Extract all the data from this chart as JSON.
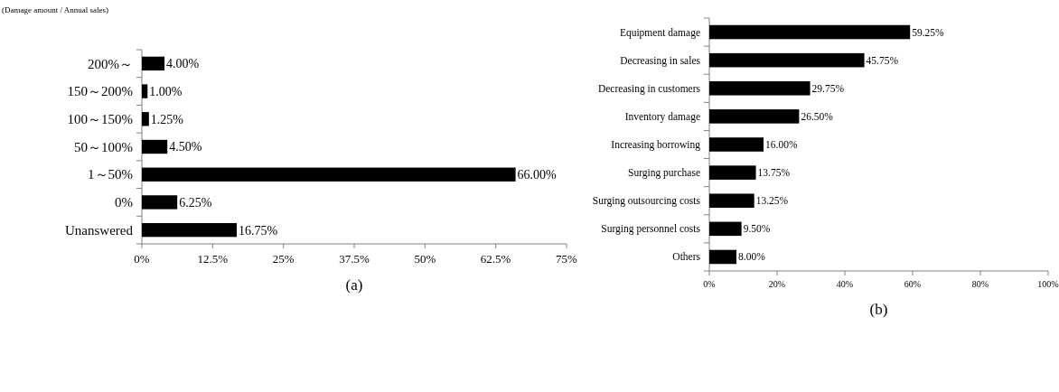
{
  "chart_data": [
    {
      "type": "bar",
      "orientation": "horizontal",
      "xlabel": "(a)",
      "annotations": [
        "(Damage amount / Annual sales)"
      ],
      "categories": [
        "200%～",
        "150～200%",
        "100～150%",
        "50～100%",
        "1～50%",
        "0%",
        "Unanswered"
      ],
      "values": [
        4.0,
        1.0,
        1.25,
        4.5,
        66.0,
        6.25,
        16.75
      ],
      "value_labels": [
        "4.00%",
        "1.00%",
        "1.25%",
        "4.50%",
        "66.00%",
        "6.25%",
        "16.75%"
      ],
      "color": "#000000",
      "xlim": [
        0,
        75
      ],
      "xticks": [
        {
          "value": 0,
          "label": "0%"
        },
        {
          "value": 12.5,
          "label": "12.5%"
        },
        {
          "value": 25,
          "label": "25%"
        },
        {
          "value": 37.5,
          "label": "37.5%"
        },
        {
          "value": 50,
          "label": "50%"
        },
        {
          "value": 62.5,
          "label": "62.5%"
        },
        {
          "value": 75,
          "label": "75%"
        }
      ],
      "grid": false
    },
    {
      "type": "bar",
      "orientation": "horizontal",
      "xlabel": "(b)",
      "categories": [
        "Equipment damage",
        "Decreasing in sales",
        "Decreasing in customers",
        "Inventory damage",
        "Increasing borrowing",
        "Surging purchase",
        "Surging outsourcing costs",
        "Surging personnel costs",
        "Others"
      ],
      "values": [
        59.25,
        45.75,
        29.75,
        26.5,
        16.0,
        13.75,
        13.25,
        9.5,
        8.0
      ],
      "value_labels": [
        "59.25%",
        "45.75%",
        "29.75%",
        "26.50%",
        "16.00%",
        "13.75%",
        "13.25%",
        "9.50%",
        "8.00%"
      ],
      "color": "#000000",
      "xlim": [
        0,
        100
      ],
      "xticks": [
        {
          "value": 0,
          "label": "0%"
        },
        {
          "value": 20,
          "label": "20%"
        },
        {
          "value": 40,
          "label": "40%"
        },
        {
          "value": 60,
          "label": "60%"
        },
        {
          "value": 80,
          "label": "80%"
        },
        {
          "value": 100,
          "label": "100%"
        }
      ],
      "grid": false
    }
  ]
}
